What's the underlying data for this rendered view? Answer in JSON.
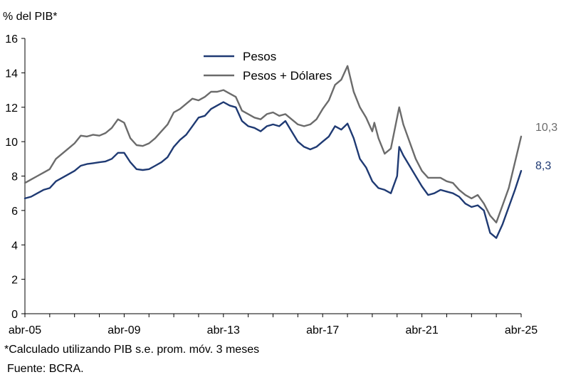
{
  "chart_data": {
    "type": "line",
    "y_unit_label": "% del PIB*",
    "ylim": [
      0,
      16
    ],
    "y_ticks": [
      0,
      2,
      4,
      6,
      8,
      10,
      12,
      14,
      16
    ],
    "x_range": [
      "2005-04",
      "2025-04"
    ],
    "x_tick_labels": [
      "abr-05",
      "abr-09",
      "abr-13",
      "abr-17",
      "abr-21",
      "abr-25"
    ],
    "grid": false,
    "legend_position": "top-center",
    "series": [
      {
        "name": "Pesos",
        "color": "#1f3a73",
        "end_label": "8,3",
        "points": [
          [
            "2005-04",
            6.7
          ],
          [
            "2005-07",
            6.8
          ],
          [
            "2005-10",
            7.0
          ],
          [
            "2006-01",
            7.2
          ],
          [
            "2006-04",
            7.3
          ],
          [
            "2006-07",
            7.7
          ],
          [
            "2006-10",
            7.9
          ],
          [
            "2007-01",
            8.1
          ],
          [
            "2007-04",
            8.3
          ],
          [
            "2007-07",
            8.6
          ],
          [
            "2007-10",
            8.7
          ],
          [
            "2008-01",
            8.75
          ],
          [
            "2008-04",
            8.8
          ],
          [
            "2008-07",
            8.85
          ],
          [
            "2008-10",
            9.0
          ],
          [
            "2009-01",
            9.35
          ],
          [
            "2009-04",
            9.35
          ],
          [
            "2009-07",
            8.8
          ],
          [
            "2009-10",
            8.4
          ],
          [
            "2010-01",
            8.35
          ],
          [
            "2010-04",
            8.4
          ],
          [
            "2010-07",
            8.6
          ],
          [
            "2010-10",
            8.8
          ],
          [
            "2011-01",
            9.1
          ],
          [
            "2011-04",
            9.7
          ],
          [
            "2011-07",
            10.1
          ],
          [
            "2011-10",
            10.4
          ],
          [
            "2012-01",
            10.9
          ],
          [
            "2012-04",
            11.4
          ],
          [
            "2012-07",
            11.5
          ],
          [
            "2012-10",
            11.9
          ],
          [
            "2013-01",
            12.1
          ],
          [
            "2013-04",
            12.3
          ],
          [
            "2013-07",
            12.1
          ],
          [
            "2013-10",
            12.0
          ],
          [
            "2014-01",
            11.2
          ],
          [
            "2014-04",
            10.9
          ],
          [
            "2014-07",
            10.8
          ],
          [
            "2014-10",
            10.6
          ],
          [
            "2015-01",
            10.9
          ],
          [
            "2015-04",
            11.0
          ],
          [
            "2015-07",
            10.9
          ],
          [
            "2015-10",
            11.2
          ],
          [
            "2016-01",
            10.6
          ],
          [
            "2016-04",
            10.0
          ],
          [
            "2016-07",
            9.7
          ],
          [
            "2016-10",
            9.55
          ],
          [
            "2017-01",
            9.7
          ],
          [
            "2017-04",
            10.0
          ],
          [
            "2017-07",
            10.3
          ],
          [
            "2017-10",
            10.9
          ],
          [
            "2018-01",
            10.7
          ],
          [
            "2018-04",
            11.05
          ],
          [
            "2018-07",
            10.2
          ],
          [
            "2018-10",
            9.0
          ],
          [
            "2019-01",
            8.5
          ],
          [
            "2019-04",
            7.7
          ],
          [
            "2019-07",
            7.3
          ],
          [
            "2019-10",
            7.2
          ],
          [
            "2020-01",
            7.0
          ],
          [
            "2020-04",
            8.0
          ],
          [
            "2020-05",
            9.7
          ],
          [
            "2020-07",
            9.2
          ],
          [
            "2020-10",
            8.6
          ],
          [
            "2021-01",
            8.0
          ],
          [
            "2021-04",
            7.4
          ],
          [
            "2021-07",
            6.9
          ],
          [
            "2021-10",
            7.0
          ],
          [
            "2022-01",
            7.2
          ],
          [
            "2022-04",
            7.1
          ],
          [
            "2022-07",
            7.0
          ],
          [
            "2022-10",
            6.8
          ],
          [
            "2023-01",
            6.4
          ],
          [
            "2023-04",
            6.2
          ],
          [
            "2023-07",
            6.3
          ],
          [
            "2023-10",
            6.0
          ],
          [
            "2024-01",
            4.7
          ],
          [
            "2024-04",
            4.4
          ],
          [
            "2024-07",
            5.2
          ],
          [
            "2024-10",
            6.2
          ],
          [
            "2025-01",
            7.2
          ],
          [
            "2025-04",
            8.3
          ]
        ]
      },
      {
        "name": "Pesos + Dólares",
        "color": "#6b6b6b",
        "end_label": "10,3",
        "points": [
          [
            "2005-04",
            7.6
          ],
          [
            "2005-07",
            7.8
          ],
          [
            "2005-10",
            8.0
          ],
          [
            "2006-01",
            8.2
          ],
          [
            "2006-04",
            8.4
          ],
          [
            "2006-07",
            9.0
          ],
          [
            "2006-10",
            9.3
          ],
          [
            "2007-01",
            9.6
          ],
          [
            "2007-04",
            9.9
          ],
          [
            "2007-07",
            10.35
          ],
          [
            "2007-10",
            10.3
          ],
          [
            "2008-01",
            10.4
          ],
          [
            "2008-04",
            10.35
          ],
          [
            "2008-07",
            10.5
          ],
          [
            "2008-10",
            10.8
          ],
          [
            "2009-01",
            11.3
          ],
          [
            "2009-04",
            11.1
          ],
          [
            "2009-07",
            10.2
          ],
          [
            "2009-10",
            9.8
          ],
          [
            "2010-01",
            9.75
          ],
          [
            "2010-04",
            9.9
          ],
          [
            "2010-07",
            10.2
          ],
          [
            "2010-10",
            10.6
          ],
          [
            "2011-01",
            11.0
          ],
          [
            "2011-04",
            11.7
          ],
          [
            "2011-07",
            11.9
          ],
          [
            "2011-10",
            12.2
          ],
          [
            "2012-01",
            12.5
          ],
          [
            "2012-04",
            12.4
          ],
          [
            "2012-07",
            12.6
          ],
          [
            "2012-10",
            12.9
          ],
          [
            "2013-01",
            12.9
          ],
          [
            "2013-04",
            13.0
          ],
          [
            "2013-07",
            12.8
          ],
          [
            "2013-10",
            12.6
          ],
          [
            "2014-01",
            11.8
          ],
          [
            "2014-04",
            11.6
          ],
          [
            "2014-07",
            11.4
          ],
          [
            "2014-10",
            11.3
          ],
          [
            "2015-01",
            11.6
          ],
          [
            "2015-04",
            11.7
          ],
          [
            "2015-07",
            11.5
          ],
          [
            "2015-10",
            11.6
          ],
          [
            "2016-01",
            11.3
          ],
          [
            "2016-04",
            11.0
          ],
          [
            "2016-07",
            10.9
          ],
          [
            "2016-10",
            11.0
          ],
          [
            "2017-01",
            11.3
          ],
          [
            "2017-04",
            11.9
          ],
          [
            "2017-07",
            12.4
          ],
          [
            "2017-10",
            13.3
          ],
          [
            "2018-01",
            13.6
          ],
          [
            "2018-04",
            14.4
          ],
          [
            "2018-07",
            12.9
          ],
          [
            "2018-10",
            12.0
          ],
          [
            "2019-01",
            11.4
          ],
          [
            "2019-04",
            10.6
          ],
          [
            "2019-05",
            11.1
          ],
          [
            "2019-07",
            10.2
          ],
          [
            "2019-10",
            9.3
          ],
          [
            "2020-01",
            9.6
          ],
          [
            "2020-05",
            12.0
          ],
          [
            "2020-07",
            11.0
          ],
          [
            "2020-10",
            10.0
          ],
          [
            "2021-01",
            9.0
          ],
          [
            "2021-04",
            8.3
          ],
          [
            "2021-07",
            7.9
          ],
          [
            "2021-10",
            7.9
          ],
          [
            "2022-01",
            7.9
          ],
          [
            "2022-04",
            7.7
          ],
          [
            "2022-07",
            7.6
          ],
          [
            "2022-10",
            7.2
          ],
          [
            "2023-01",
            6.9
          ],
          [
            "2023-04",
            6.7
          ],
          [
            "2023-07",
            6.9
          ],
          [
            "2023-10",
            6.4
          ],
          [
            "2024-01",
            5.7
          ],
          [
            "2024-04",
            5.3
          ],
          [
            "2024-07",
            6.3
          ],
          [
            "2024-10",
            7.3
          ],
          [
            "2025-01",
            8.8
          ],
          [
            "2025-04",
            10.3
          ]
        ]
      }
    ]
  },
  "footnotes": {
    "calc_note": "*Calculado utilizando PIB s.e. prom. móv. 3 meses",
    "source": "Fuente: BCRA."
  }
}
